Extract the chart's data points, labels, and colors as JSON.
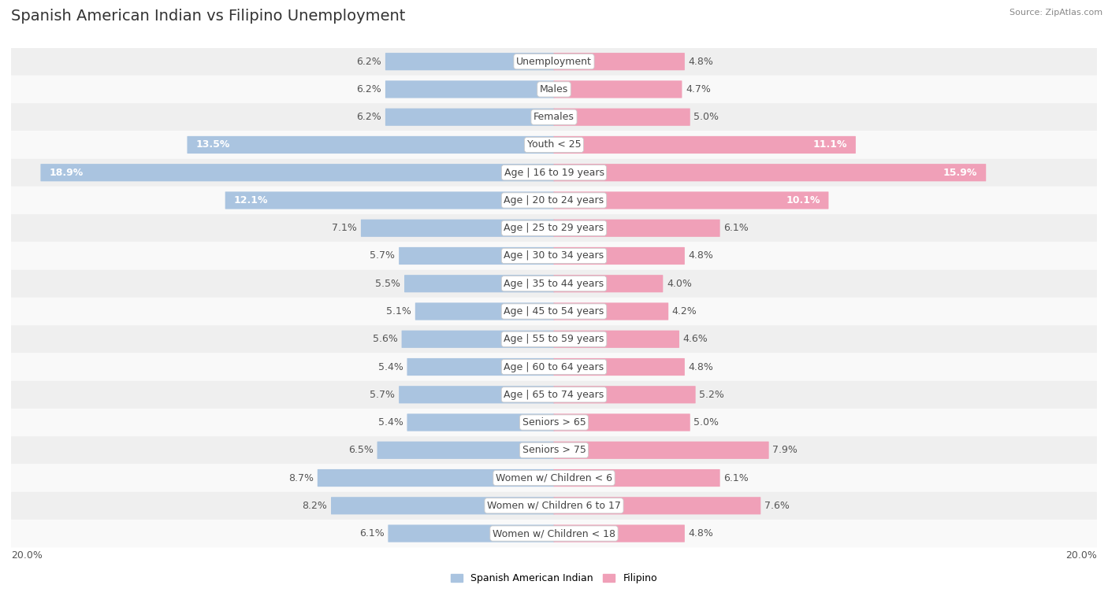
{
  "title": "Spanish American Indian vs Filipino Unemployment",
  "source": "Source: ZipAtlas.com",
  "categories": [
    "Unemployment",
    "Males",
    "Females",
    "Youth < 25",
    "Age | 16 to 19 years",
    "Age | 20 to 24 years",
    "Age | 25 to 29 years",
    "Age | 30 to 34 years",
    "Age | 35 to 44 years",
    "Age | 45 to 54 years",
    "Age | 55 to 59 years",
    "Age | 60 to 64 years",
    "Age | 65 to 74 years",
    "Seniors > 65",
    "Seniors > 75",
    "Women w/ Children < 6",
    "Women w/ Children 6 to 17",
    "Women w/ Children < 18"
  ],
  "left_values": [
    6.2,
    6.2,
    6.2,
    13.5,
    18.9,
    12.1,
    7.1,
    5.7,
    5.5,
    5.1,
    5.6,
    5.4,
    5.7,
    5.4,
    6.5,
    8.7,
    8.2,
    6.1
  ],
  "right_values": [
    4.8,
    4.7,
    5.0,
    11.1,
    15.9,
    10.1,
    6.1,
    4.8,
    4.0,
    4.2,
    4.6,
    4.8,
    5.2,
    5.0,
    7.9,
    6.1,
    7.6,
    4.8
  ],
  "left_color": "#aac4e0",
  "right_color": "#f0a0b8",
  "left_label": "Spanish American Indian",
  "right_label": "Filipino",
  "max_val": 20.0,
  "background_row_odd": "#f0f0f0",
  "background_row_even": "#fafafa",
  "bar_height": 0.6,
  "title_fontsize": 14,
  "value_fontsize": 9,
  "cat_fontsize": 9,
  "axis_fontsize": 9,
  "fig_bg": "#ffffff",
  "row_bg_colors": [
    "#efefef",
    "#f9f9f9"
  ]
}
